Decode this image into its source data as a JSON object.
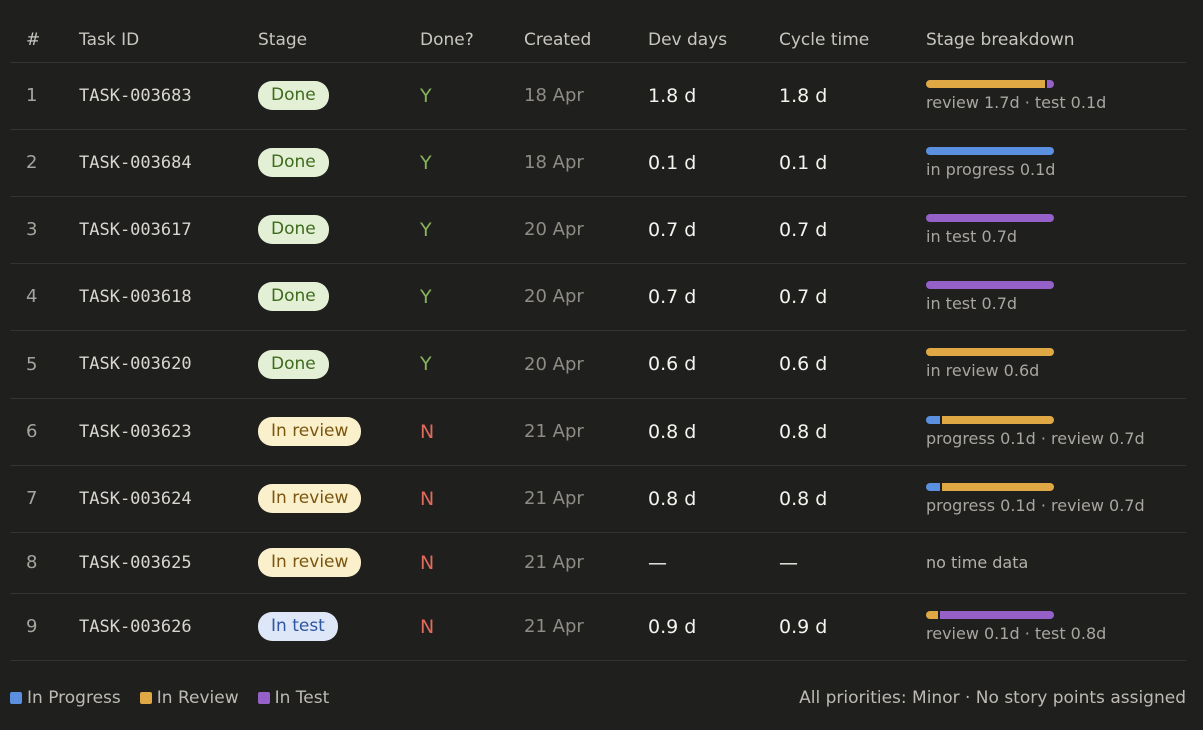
{
  "colors": {
    "in_progress": "#5b8fe0",
    "in_review": "#e0a844",
    "in_test": "#9561c8"
  },
  "headers": {
    "num": "#",
    "task_id": "Task ID",
    "stage": "Stage",
    "done": "Done?",
    "created": "Created",
    "dev_days": "Dev days",
    "cycle_time": "Cycle time",
    "breakdown": "Stage breakdown"
  },
  "rows": [
    {
      "num": "1",
      "task_id": "TASK-003683",
      "stage": "Done",
      "stage_kind": "done",
      "done": "Y",
      "created": "18 Apr",
      "dev_days": "1.8 d",
      "cycle_time": "1.8 d",
      "segments": [
        {
          "stage": "in_review",
          "days": 1.7
        },
        {
          "stage": "in_test",
          "days": 0.1
        }
      ],
      "breakdown_label": "review 1.7d · test 0.1d"
    },
    {
      "num": "2",
      "task_id": "TASK-003684",
      "stage": "Done",
      "stage_kind": "done",
      "done": "Y",
      "created": "18 Apr",
      "dev_days": "0.1 d",
      "cycle_time": "0.1 d",
      "segments": [
        {
          "stage": "in_progress",
          "days": 0.1
        }
      ],
      "breakdown_label": "in progress 0.1d"
    },
    {
      "num": "3",
      "task_id": "TASK-003617",
      "stage": "Done",
      "stage_kind": "done",
      "done": "Y",
      "created": "20 Apr",
      "dev_days": "0.7 d",
      "cycle_time": "0.7 d",
      "segments": [
        {
          "stage": "in_test",
          "days": 0.7
        }
      ],
      "breakdown_label": "in test 0.7d"
    },
    {
      "num": "4",
      "task_id": "TASK-003618",
      "stage": "Done",
      "stage_kind": "done",
      "done": "Y",
      "created": "20 Apr",
      "dev_days": "0.7 d",
      "cycle_time": "0.7 d",
      "segments": [
        {
          "stage": "in_test",
          "days": 0.7
        }
      ],
      "breakdown_label": "in test 0.7d"
    },
    {
      "num": "5",
      "task_id": "TASK-003620",
      "stage": "Done",
      "stage_kind": "done",
      "done": "Y",
      "created": "20 Apr",
      "dev_days": "0.6 d",
      "cycle_time": "0.6 d",
      "segments": [
        {
          "stage": "in_review",
          "days": 0.6
        }
      ],
      "breakdown_label": "in review 0.6d"
    },
    {
      "num": "6",
      "task_id": "TASK-003623",
      "stage": "In review",
      "stage_kind": "review",
      "done": "N",
      "created": "21 Apr",
      "dev_days": "0.8 d",
      "cycle_time": "0.8 d",
      "segments": [
        {
          "stage": "in_progress",
          "days": 0.1
        },
        {
          "stage": "in_review",
          "days": 0.7
        }
      ],
      "breakdown_label": "progress 0.1d · review 0.7d"
    },
    {
      "num": "7",
      "task_id": "TASK-003624",
      "stage": "In review",
      "stage_kind": "review",
      "done": "N",
      "created": "21 Apr",
      "dev_days": "0.8 d",
      "cycle_time": "0.8 d",
      "segments": [
        {
          "stage": "in_progress",
          "days": 0.1
        },
        {
          "stage": "in_review",
          "days": 0.7
        }
      ],
      "breakdown_label": "progress 0.1d · review 0.7d"
    },
    {
      "num": "8",
      "task_id": "TASK-003625",
      "stage": "In review",
      "stage_kind": "review",
      "done": "N",
      "created": "21 Apr",
      "dev_days": "—",
      "cycle_time": "—",
      "segments": [],
      "breakdown_label": "no time data"
    },
    {
      "num": "9",
      "task_id": "TASK-003626",
      "stage": "In test",
      "stage_kind": "test",
      "done": "N",
      "created": "21 Apr",
      "dev_days": "0.9 d",
      "cycle_time": "0.9 d",
      "segments": [
        {
          "stage": "in_review",
          "days": 0.1
        },
        {
          "stage": "in_test",
          "days": 0.8
        }
      ],
      "breakdown_label": "review 0.1d · test 0.8d"
    }
  ],
  "legend": [
    {
      "label": "In Progress",
      "color_key": "in_progress"
    },
    {
      "label": "In Review",
      "color_key": "in_review"
    },
    {
      "label": "In Test",
      "color_key": "in_test"
    }
  ],
  "footnote": "All priorities: Minor · No story points assigned"
}
